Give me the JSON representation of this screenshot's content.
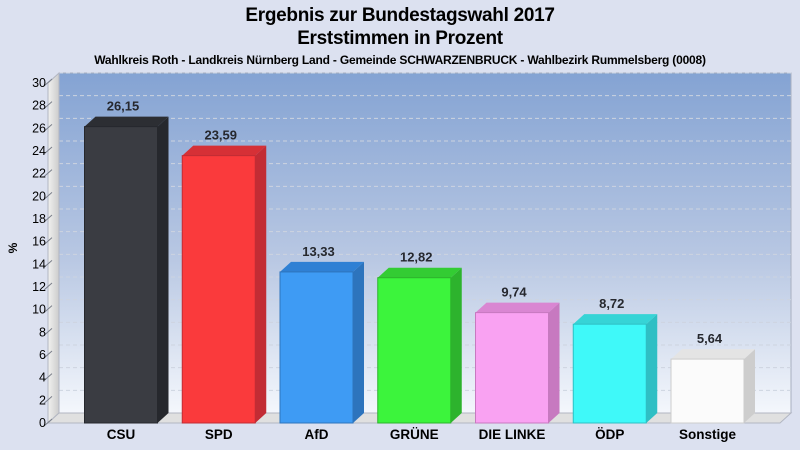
{
  "chart_data": {
    "type": "bar",
    "style": "3d-column",
    "title": "Ergebnis zur Bundestagswahl 2017",
    "subtitle": "Erststimmen in Prozent",
    "caption": "Wahlkreis Roth - Landkreis Nürnberg Land - Gemeinde SCHWARZENBRUCK - Wahlbezirk Rummelsberg (0008)",
    "categories": [
      "CSU",
      "SPD",
      "AfD",
      "GRÜNE",
      "DIE LINKE",
      "ÖDP",
      "Sonstige"
    ],
    "values": [
      26.15,
      23.59,
      13.33,
      12.82,
      9.74,
      8.72,
      5.64
    ],
    "value_labels": [
      "26,15",
      "23,59",
      "13,33",
      "12,82",
      "9,74",
      "8,72",
      "5,64"
    ],
    "xlabel": "",
    "ylabel": "%",
    "ylim": [
      0,
      30
    ],
    "ytick_step": 2,
    "grid": "horizontal-dashed",
    "legend": "none",
    "bar_colors": [
      {
        "name": "CSU",
        "front": "#3a3c42",
        "top": "#2c2e33",
        "side": "#26282d"
      },
      {
        "name": "SPD",
        "front": "#fa3a3c",
        "top": "#d63036",
        "side": "#c22c34"
      },
      {
        "name": "AfD",
        "front": "#3e9bf4",
        "top": "#2f80d4",
        "side": "#2d74bd"
      },
      {
        "name": "GRÜNE",
        "front": "#3cf43c",
        "top": "#33cc33",
        "side": "#2db32d"
      },
      {
        "name": "DIE LINKE",
        "front": "#f9a2f2",
        "top": "#d986d2",
        "side": "#c779c0"
      },
      {
        "name": "ÖDP",
        "front": "#3ff9f9",
        "top": "#36d4d6",
        "side": "#2fbfc4"
      },
      {
        "name": "Sonstige",
        "front": "#fbfbfb",
        "top": "#e4e4e4",
        "side": "#cdcdcd"
      }
    ],
    "colors": {
      "page_background": "#dce1f0",
      "plot_gradient_top": "#84a3d3",
      "plot_gradient_bottom": "#f4f7fc",
      "wall": "#e0e0de",
      "floor": "#e0e0e0",
      "gridline": "#cdd4e0",
      "axis_text": "#000000",
      "value_text": "#26282e"
    }
  }
}
